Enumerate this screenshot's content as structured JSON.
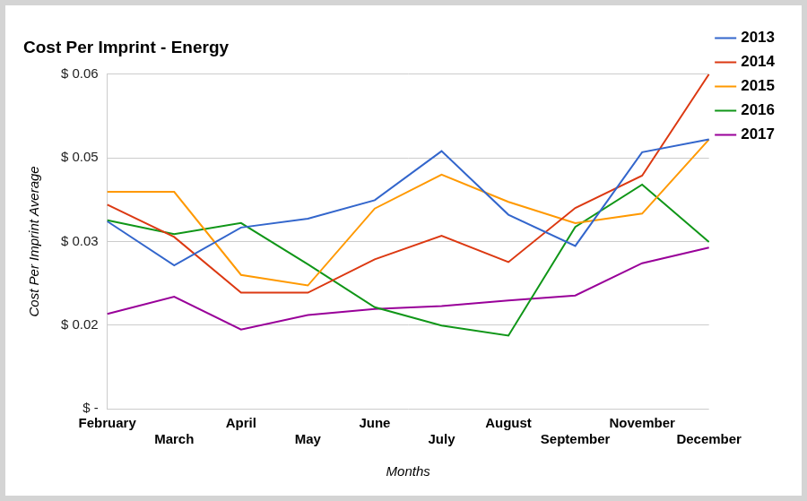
{
  "chart_data": {
    "type": "line",
    "title": "Cost Per Imprint - Energy",
    "x_label": "Months",
    "y_label": "Cost Per Imprint Average",
    "categories": [
      "February",
      "March",
      "April",
      "May",
      "June",
      "July",
      "August",
      "September",
      "November",
      "December"
    ],
    "series": [
      {
        "name": "2013",
        "color": "#3366cc",
        "values": [
          0.0336,
          0.0257,
          0.0325,
          0.0341,
          0.0374,
          0.0462,
          0.0348,
          0.0292,
          0.046,
          0.0483
        ]
      },
      {
        "name": "2014",
        "color": "#dc3912",
        "values": [
          0.0366,
          0.0308,
          0.0208,
          0.0208,
          0.0268,
          0.031,
          0.0263,
          0.036,
          0.0418,
          0.06
        ]
      },
      {
        "name": "2015",
        "color": "#ff9900",
        "values": [
          0.0389,
          0.0389,
          0.024,
          0.0221,
          0.0359,
          0.042,
          0.0371,
          0.0333,
          0.035,
          0.0483
        ]
      },
      {
        "name": "2016",
        "color": "#109618",
        "values": [
          0.0338,
          0.0313,
          0.0333,
          0.0259,
          0.0182,
          0.0149,
          0.0131,
          0.0326,
          0.0402,
          0.0299
        ]
      },
      {
        "name": "2017",
        "color": "#990099",
        "values": [
          0.017,
          0.0201,
          0.0142,
          0.0168,
          0.0179,
          0.0184,
          0.0194,
          0.0203,
          0.0261,
          0.0289
        ]
      }
    ],
    "ylim": [
      0,
      0.06
    ],
    "yticks": [
      {
        "value": 0,
        "label": "$ -"
      },
      {
        "value": 0.015,
        "label": "$ 0.02"
      },
      {
        "value": 0.03,
        "label": "$ 0.03"
      },
      {
        "value": 0.045,
        "label": "$ 0.05"
      },
      {
        "value": 0.06,
        "label": "$ 0.06"
      }
    ],
    "grid": true,
    "legend": "right"
  }
}
